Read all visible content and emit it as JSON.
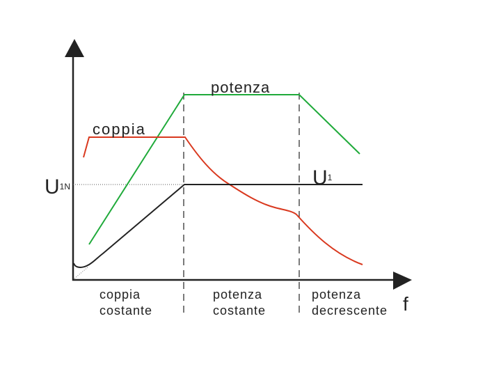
{
  "curves": {
    "power": "potenza",
    "torque": "coppia",
    "voltage": {
      "symbol": "U",
      "subscript": "1"
    }
  },
  "axis": {
    "rated_voltage": {
      "symbol": "U",
      "subscript": "1N"
    },
    "x_label": "f"
  },
  "regions": [
    [
      "coppia",
      "costante"
    ],
    [
      "potenza",
      "costante"
    ],
    [
      "potenza",
      "decrescente"
    ]
  ]
}
